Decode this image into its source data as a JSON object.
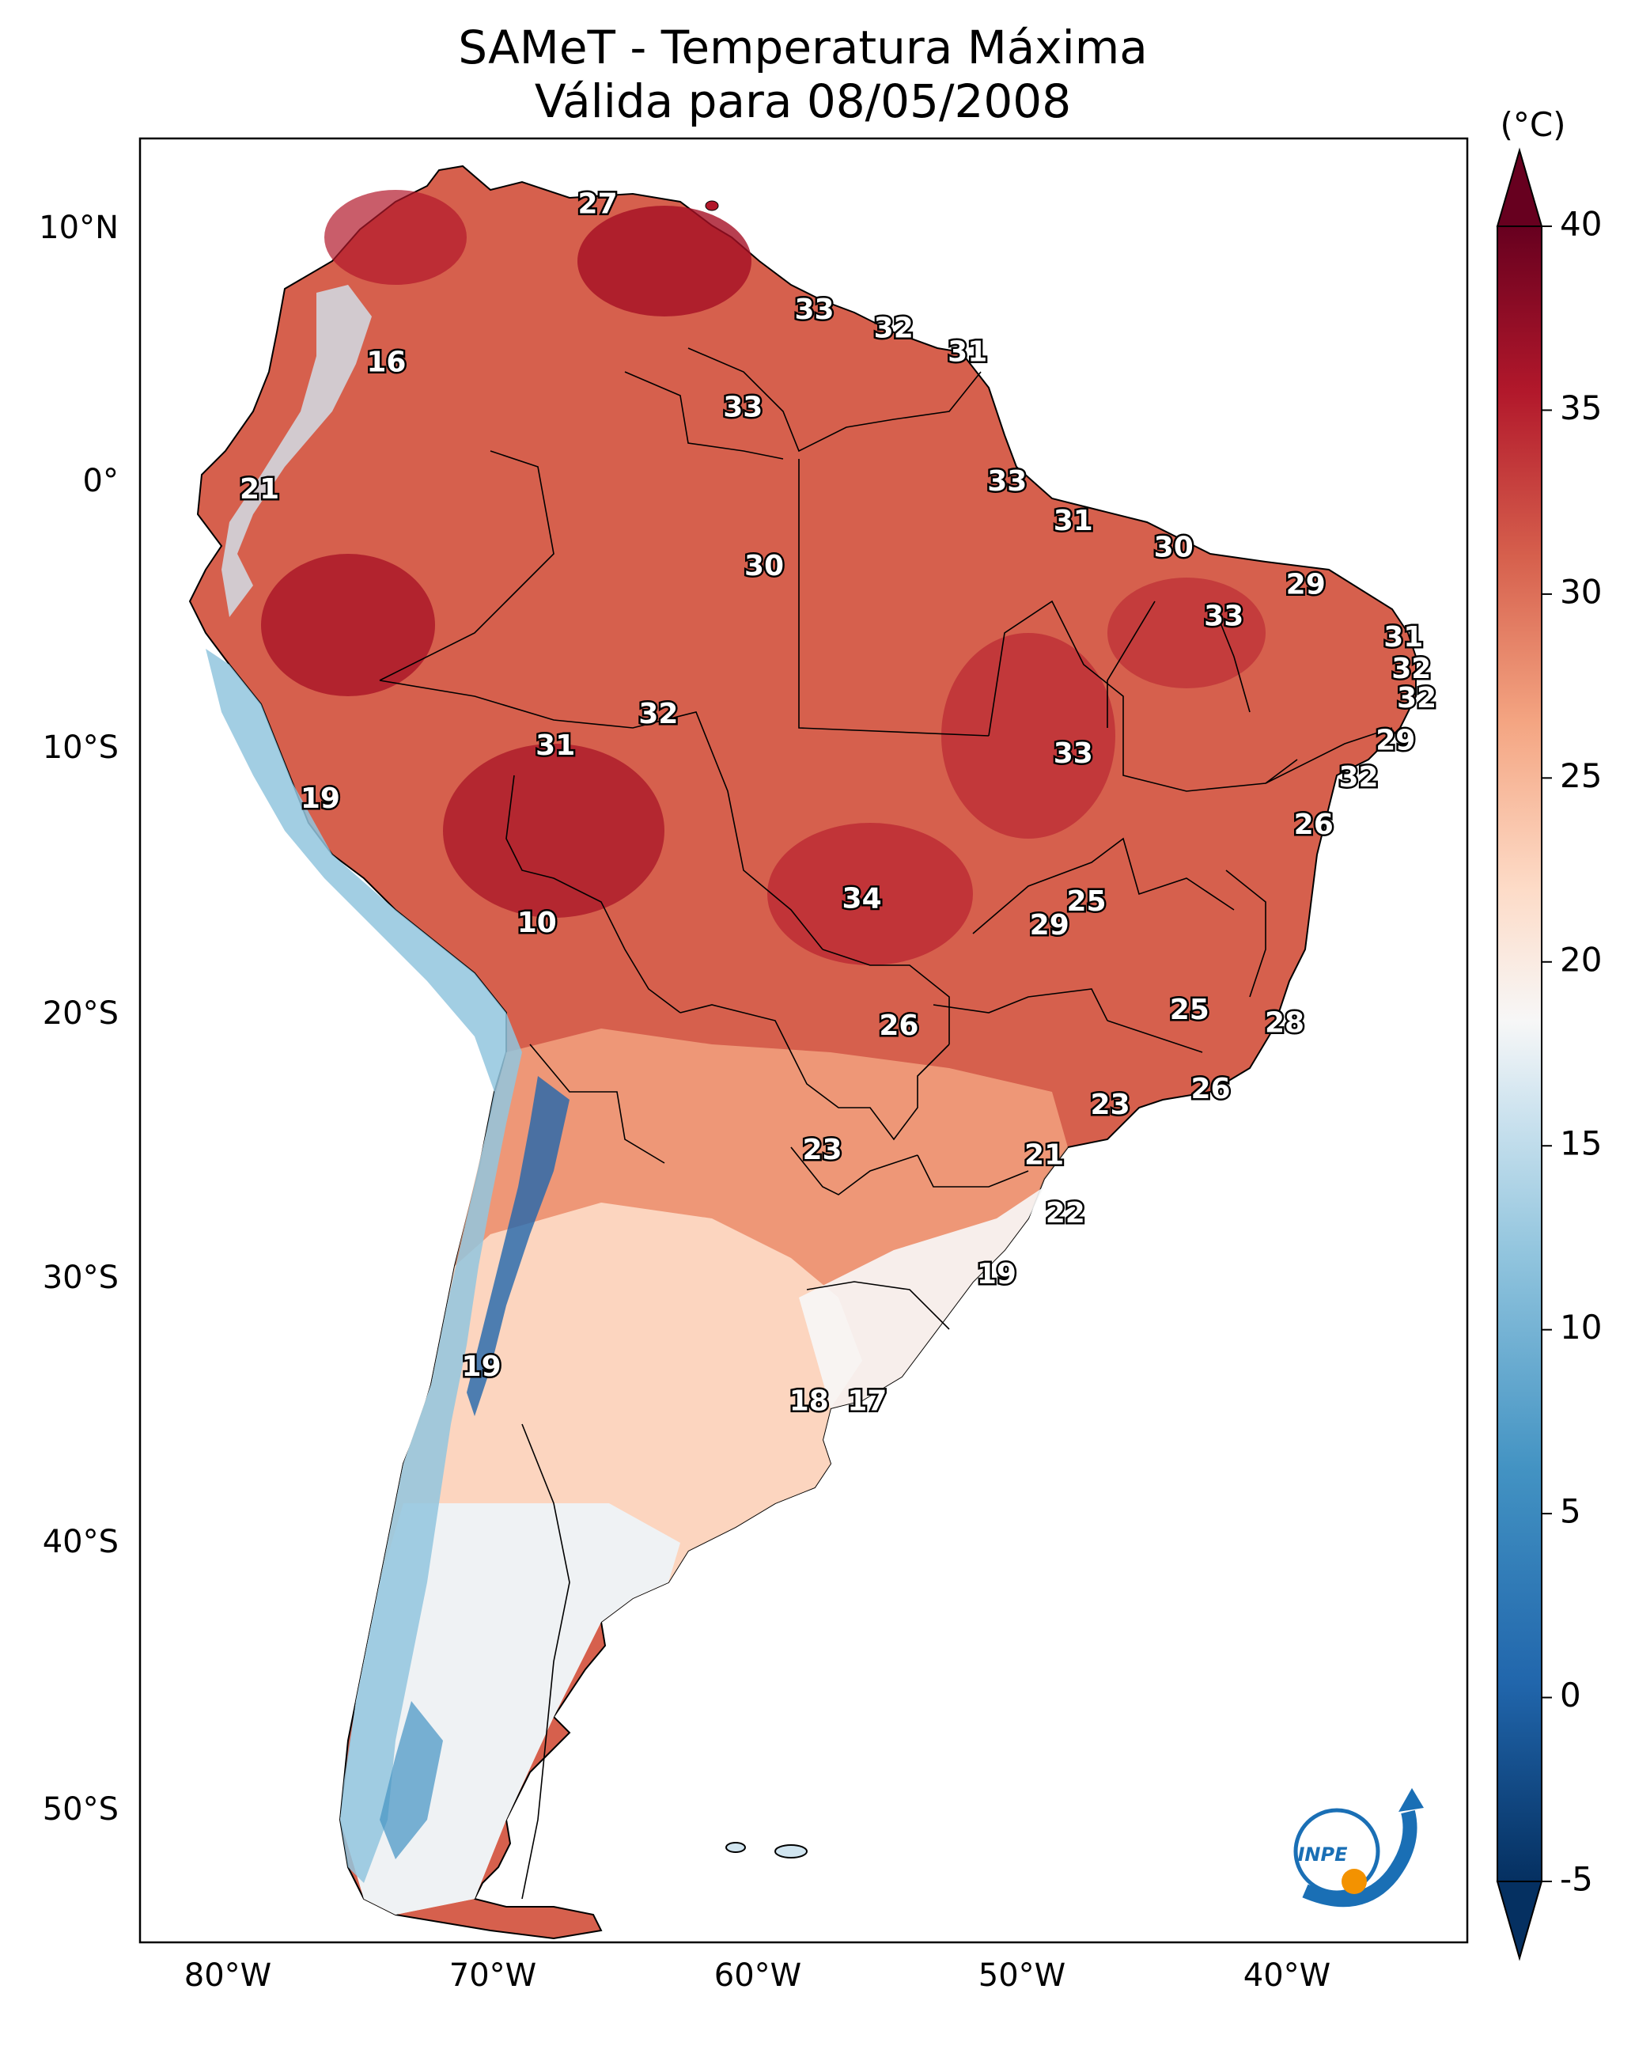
{
  "title": {
    "line1": "SAMeT - Temperatura Máxima",
    "line2": "Válida para 08/05/2008"
  },
  "axes": {
    "lat_ticks": [
      "10°N",
      "0°",
      "10°S",
      "20°S",
      "30°S",
      "40°S",
      "50°S"
    ],
    "lon_ticks": [
      "80°W",
      "70°W",
      "60°W",
      "50°W",
      "40°W"
    ]
  },
  "colorbar": {
    "unit": "(°C)",
    "ticks": [
      "40",
      "35",
      "30",
      "25",
      "20",
      "15",
      "10",
      "5",
      "0",
      "-5"
    ],
    "min": -5,
    "max": 40,
    "colors": {
      "hot": "#67001f",
      "warm": "#d6604d",
      "neutral": "#f7f7f7",
      "cool": "#4393c3",
      "cold": "#053061"
    }
  },
  "logo": {
    "text": "INPE"
  },
  "map_labels": [
    {
      "value": "27",
      "lon": -66.0,
      "lat": 10.5
    },
    {
      "value": "33",
      "lon": -57.8,
      "lat": 6.5
    },
    {
      "value": "32",
      "lon": -54.8,
      "lat": 5.8
    },
    {
      "value": "31",
      "lon": -52.0,
      "lat": 4.9
    },
    {
      "value": "16",
      "lon": -74.0,
      "lat": 4.5
    },
    {
      "value": "33",
      "lon": -60.5,
      "lat": 2.8
    },
    {
      "value": "21",
      "lon": -78.8,
      "lat": -0.3
    },
    {
      "value": "33",
      "lon": -50.5,
      "lat": 0.0
    },
    {
      "value": "31",
      "lon": -48.0,
      "lat": -1.5
    },
    {
      "value": "30",
      "lon": -44.2,
      "lat": -2.5
    },
    {
      "value": "30",
      "lon": -59.7,
      "lat": -3.2
    },
    {
      "value": "29",
      "lon": -39.2,
      "lat": -3.9
    },
    {
      "value": "33",
      "lon": -42.3,
      "lat": -5.1
    },
    {
      "value": "31",
      "lon": -35.5,
      "lat": -5.9
    },
    {
      "value": "32",
      "lon": -35.2,
      "lat": -7.1
    },
    {
      "value": "32",
      "lon": -35.0,
      "lat": -8.2
    },
    {
      "value": "32",
      "lon": -63.7,
      "lat": -8.8
    },
    {
      "value": "29",
      "lon": -35.8,
      "lat": -9.8
    },
    {
      "value": "31",
      "lon": -67.6,
      "lat": -10.0
    },
    {
      "value": "33",
      "lon": -48.0,
      "lat": -10.3
    },
    {
      "value": "32",
      "lon": -37.2,
      "lat": -11.2
    },
    {
      "value": "19",
      "lon": -76.5,
      "lat": -12.0
    },
    {
      "value": "26",
      "lon": -38.9,
      "lat": -13.0
    },
    {
      "value": "34",
      "lon": -56.0,
      "lat": -15.8
    },
    {
      "value": "25",
      "lon": -47.5,
      "lat": -15.9
    },
    {
      "value": "29",
      "lon": -48.9,
      "lat": -16.8
    },
    {
      "value": "10",
      "lon": -68.3,
      "lat": -16.7
    },
    {
      "value": "25",
      "lon": -43.6,
      "lat": -20.0
    },
    {
      "value": "28",
      "lon": -40.0,
      "lat": -20.5
    },
    {
      "value": "26",
      "lon": -54.6,
      "lat": -20.6
    },
    {
      "value": "26",
      "lon": -42.8,
      "lat": -23.0
    },
    {
      "value": "23",
      "lon": -46.6,
      "lat": -23.6
    },
    {
      "value": "23",
      "lon": -57.5,
      "lat": -25.3
    },
    {
      "value": "21",
      "lon": -49.1,
      "lat": -25.5
    },
    {
      "value": "22",
      "lon": -48.3,
      "lat": -27.7
    },
    {
      "value": "19",
      "lon": -50.9,
      "lat": -30.0
    },
    {
      "value": "19",
      "lon": -70.4,
      "lat": -33.5
    },
    {
      "value": "18",
      "lon": -58.0,
      "lat": -34.8
    },
    {
      "value": "17",
      "lon": -55.8,
      "lat": -34.8
    }
  ]
}
